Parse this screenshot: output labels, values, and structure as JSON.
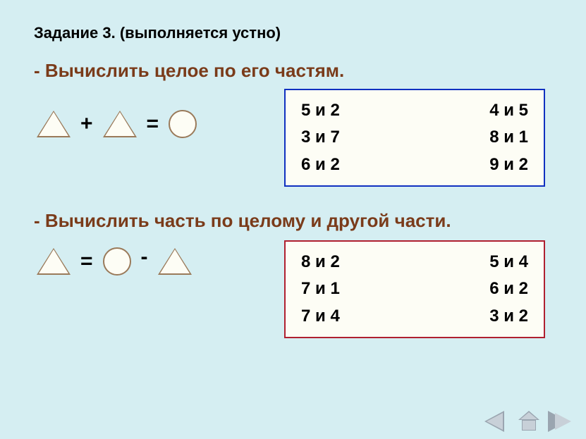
{
  "background_color": "#d5eef2",
  "task_title": "Задание 3. (выполняется устно)",
  "task_title_fontsize": 22,
  "heading_color": "#7a3b1a",
  "heading_fontsize": 26,
  "section1": {
    "heading": "- Вычислить целое по его частям.",
    "equation": {
      "shapes": [
        "triangle",
        "plus",
        "triangle",
        "equals",
        "circle"
      ],
      "plus": "+",
      "equals": "="
    },
    "box": {
      "border_color": "#1030c0",
      "background": "#fdfdf5",
      "fontsize": 24,
      "rows": [
        {
          "left": "5 и 2",
          "right": "4 и 5"
        },
        {
          "left": "3 и 7",
          "right": "8 и 1"
        },
        {
          "left": "6 и 2",
          "right": "9 и 2"
        }
      ]
    }
  },
  "section2": {
    "heading": "- Вычислить часть по целому и другой части.",
    "equation": {
      "shapes": [
        "triangle",
        "equals",
        "circle",
        "minus",
        "triangle"
      ],
      "equals": "=",
      "minus": "-"
    },
    "box": {
      "border_color": "#b02030",
      "background": "#fdfdf5",
      "fontsize": 24,
      "rows": [
        {
          "left": "8 и 2",
          "right": "5 и 4"
        },
        {
          "left": "7 и 1",
          "right": "6 и 2"
        },
        {
          "left": "7 и 4",
          "right": "3 и 2"
        }
      ]
    }
  },
  "shape_style": {
    "triangle_border_color": "#9a7a5a",
    "triangle_fill": "#fdfdf5",
    "circle_border_color": "#9a7a5a",
    "circle_fill": "#fdfdf5"
  },
  "nav": {
    "back_icon": "triangle-left",
    "home_icon": "house",
    "forward_icon": "triangle-right",
    "icon_fill": "#c8d0d8",
    "icon_border": "#9aa5b0"
  }
}
